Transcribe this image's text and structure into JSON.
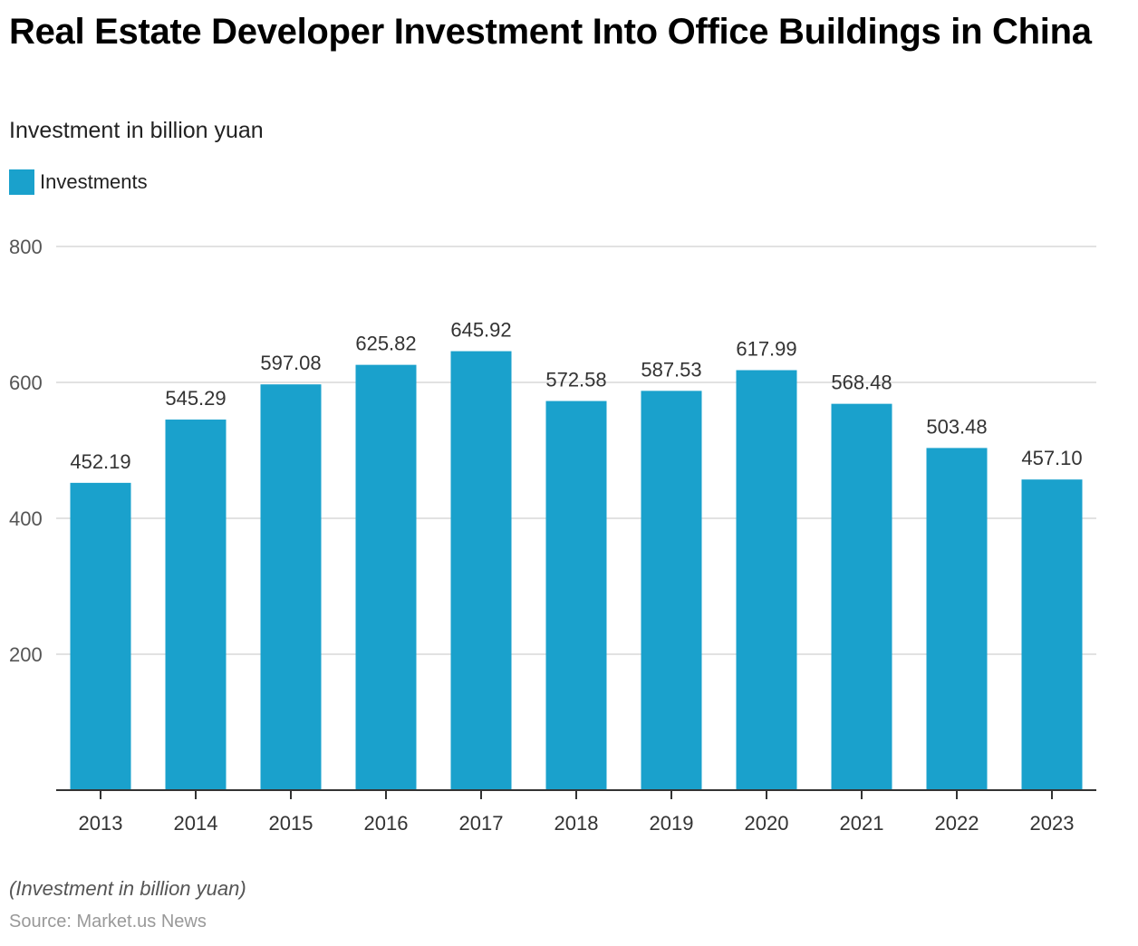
{
  "header": {
    "title": "Real Estate Developer Investment Into Office Buildings in China",
    "subtitle": "Investment in billion yuan"
  },
  "legend": {
    "label": "Investments",
    "color": "#1aa1cc"
  },
  "footer": {
    "note": "(Investment in billion yuan)",
    "source": "Source: Market.us News"
  },
  "chart_data": {
    "type": "bar",
    "title": "Real Estate Developer Investment Into Office Buildings in China",
    "subtitle": "Investment in billion yuan",
    "xlabel": "",
    "ylabel": "",
    "categories": [
      "2013",
      "2014",
      "2015",
      "2016",
      "2017",
      "2018",
      "2019",
      "2020",
      "2021",
      "2022",
      "2023"
    ],
    "series": [
      {
        "name": "Investments",
        "color": "#1aa1cc",
        "values": [
          452.19,
          545.29,
          597.08,
          625.82,
          645.92,
          572.58,
          587.53,
          617.99,
          568.48,
          503.48,
          457.1
        ],
        "labels": [
          "452.19",
          "545.29",
          "597.08",
          "625.82",
          "645.92",
          "572.58",
          "587.53",
          "617.99",
          "568.48",
          "503.48",
          "457.10"
        ]
      }
    ],
    "ylim": [
      0,
      800
    ],
    "yticks": [
      200,
      400,
      600,
      800
    ],
    "ytick_labels": [
      "200",
      "400",
      "600",
      "800"
    ],
    "grid": true,
    "legend_position": "top-left"
  }
}
